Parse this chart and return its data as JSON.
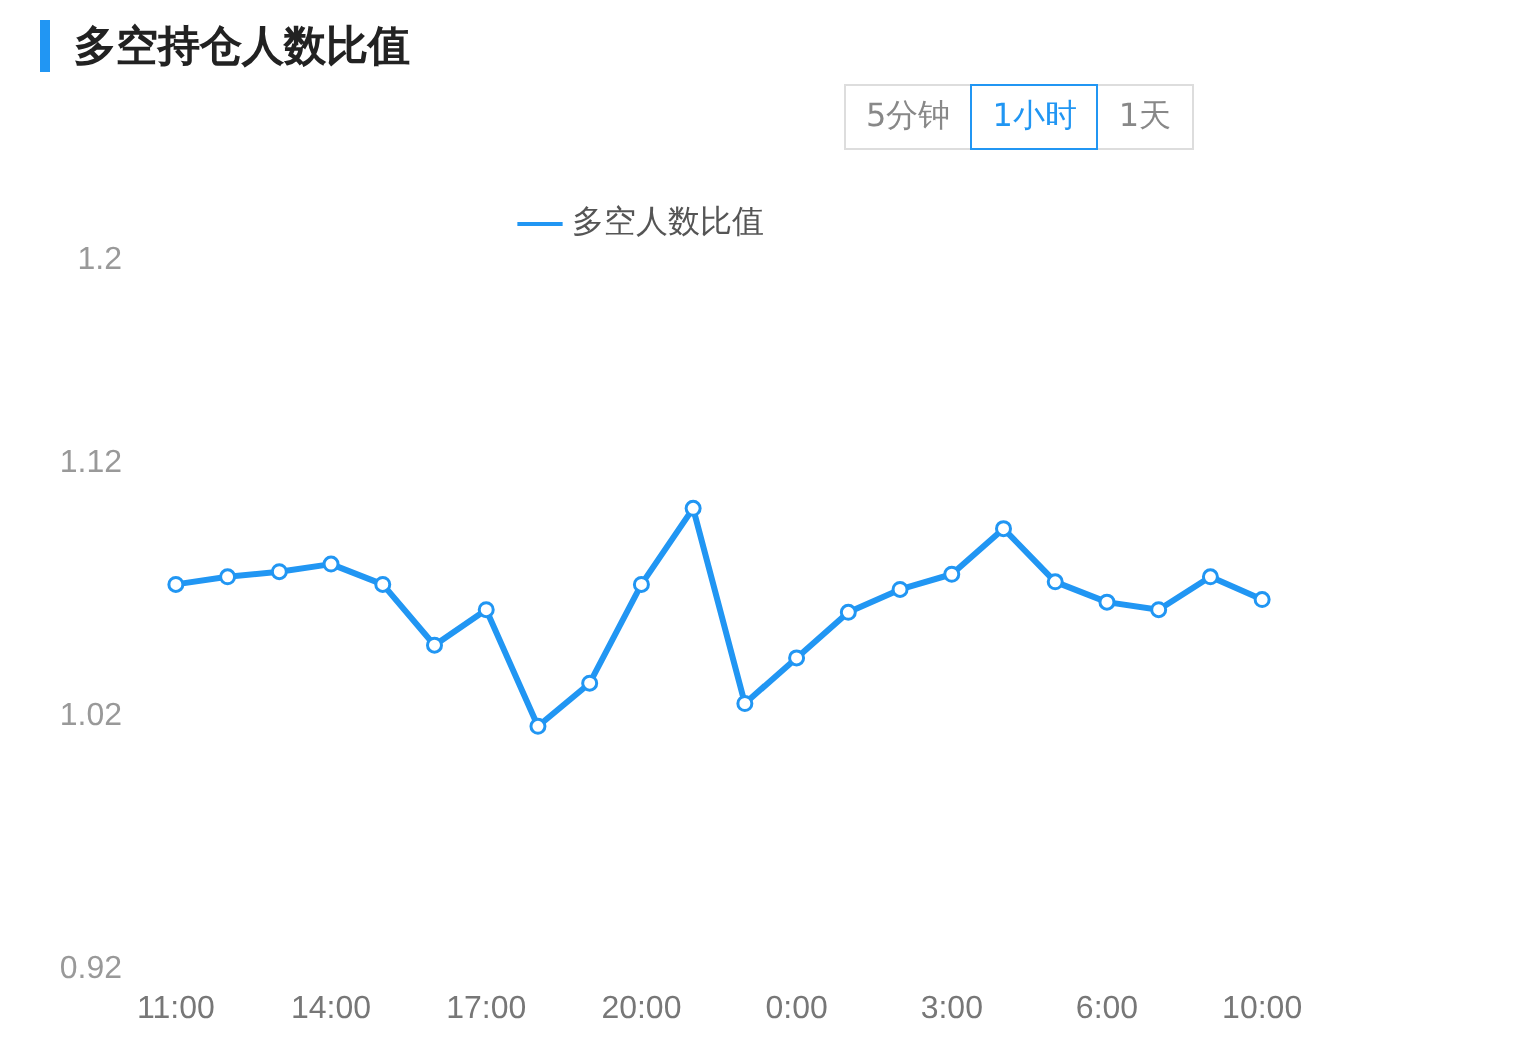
{
  "chart_data": {
    "type": "line",
    "title": "多空持仓人数比值",
    "annotations": [
      "5分钟",
      "1小时",
      "1天"
    ],
    "categories": [
      "11:00",
      null,
      null,
      "14:00",
      null,
      null,
      "17:00",
      null,
      null,
      "20:00",
      null,
      null,
      "0:00",
      null,
      null,
      "3:00",
      null,
      null,
      "6:00",
      null,
      null,
      "10:00"
    ],
    "series": [
      {
        "name": "多空人数比值",
        "color": "#2196f3",
        "values": [
          1.072,
          1.075,
          1.077,
          1.08,
          1.072,
          1.048,
          1.062,
          1.016,
          1.033,
          1.072,
          1.102,
          1.025,
          1.043,
          1.061,
          1.07,
          1.076,
          1.094,
          1.073,
          1.065,
          1.062,
          1.075,
          1.066
        ]
      }
    ],
    "ylim": [
      0.92,
      1.2
    ],
    "yticks": [
      0.92,
      1.02,
      1.12,
      1.2
    ],
    "grid": false,
    "legend": "top",
    "marker": "circle",
    "line_style": "solid"
  }
}
